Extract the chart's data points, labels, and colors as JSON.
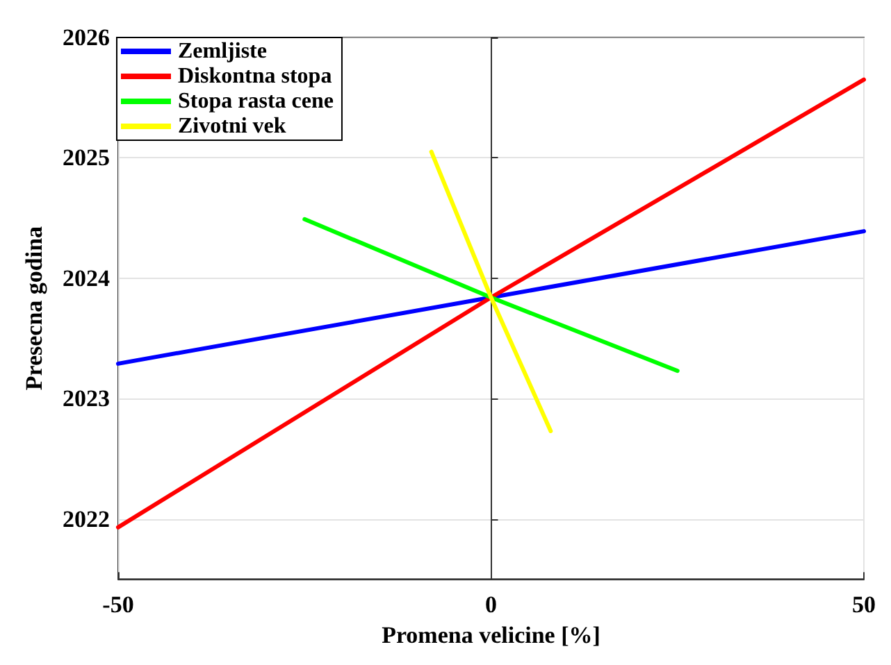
{
  "chart_data": {
    "type": "line",
    "xlabel": "Promena velicine [%]",
    "ylabel": "Presecna godina",
    "xlim": [
      -50,
      50
    ],
    "xticks": [
      -50,
      0,
      50
    ],
    "ylim": [
      2021.5,
      2026
    ],
    "yticks": [
      2022,
      2023,
      2024,
      2025,
      2026
    ],
    "grid": true,
    "legend": "top left",
    "marker": "none",
    "line_style": "solid",
    "series": [
      {
        "name": "Zemljiste",
        "color": "#0000ff",
        "x": [
          -50,
          0,
          50
        ],
        "values": [
          2023.29,
          2023.84,
          2024.39
        ]
      },
      {
        "name": "Diskontna stopa",
        "color": "#ff0000",
        "x": [
          -50,
          0,
          50
        ],
        "values": [
          2021.93,
          2023.84,
          2025.65
        ]
      },
      {
        "name": "Stopa rasta cene",
        "color": "#00ff00",
        "x": [
          -25,
          0,
          25
        ],
        "values": [
          2024.49,
          2023.84,
          2023.23
        ]
      },
      {
        "name": "Zivotni vek",
        "color": "#ffff00",
        "x": [
          -8,
          0,
          8
        ],
        "values": [
          2025.05,
          2023.84,
          2022.73
        ]
      }
    ]
  }
}
